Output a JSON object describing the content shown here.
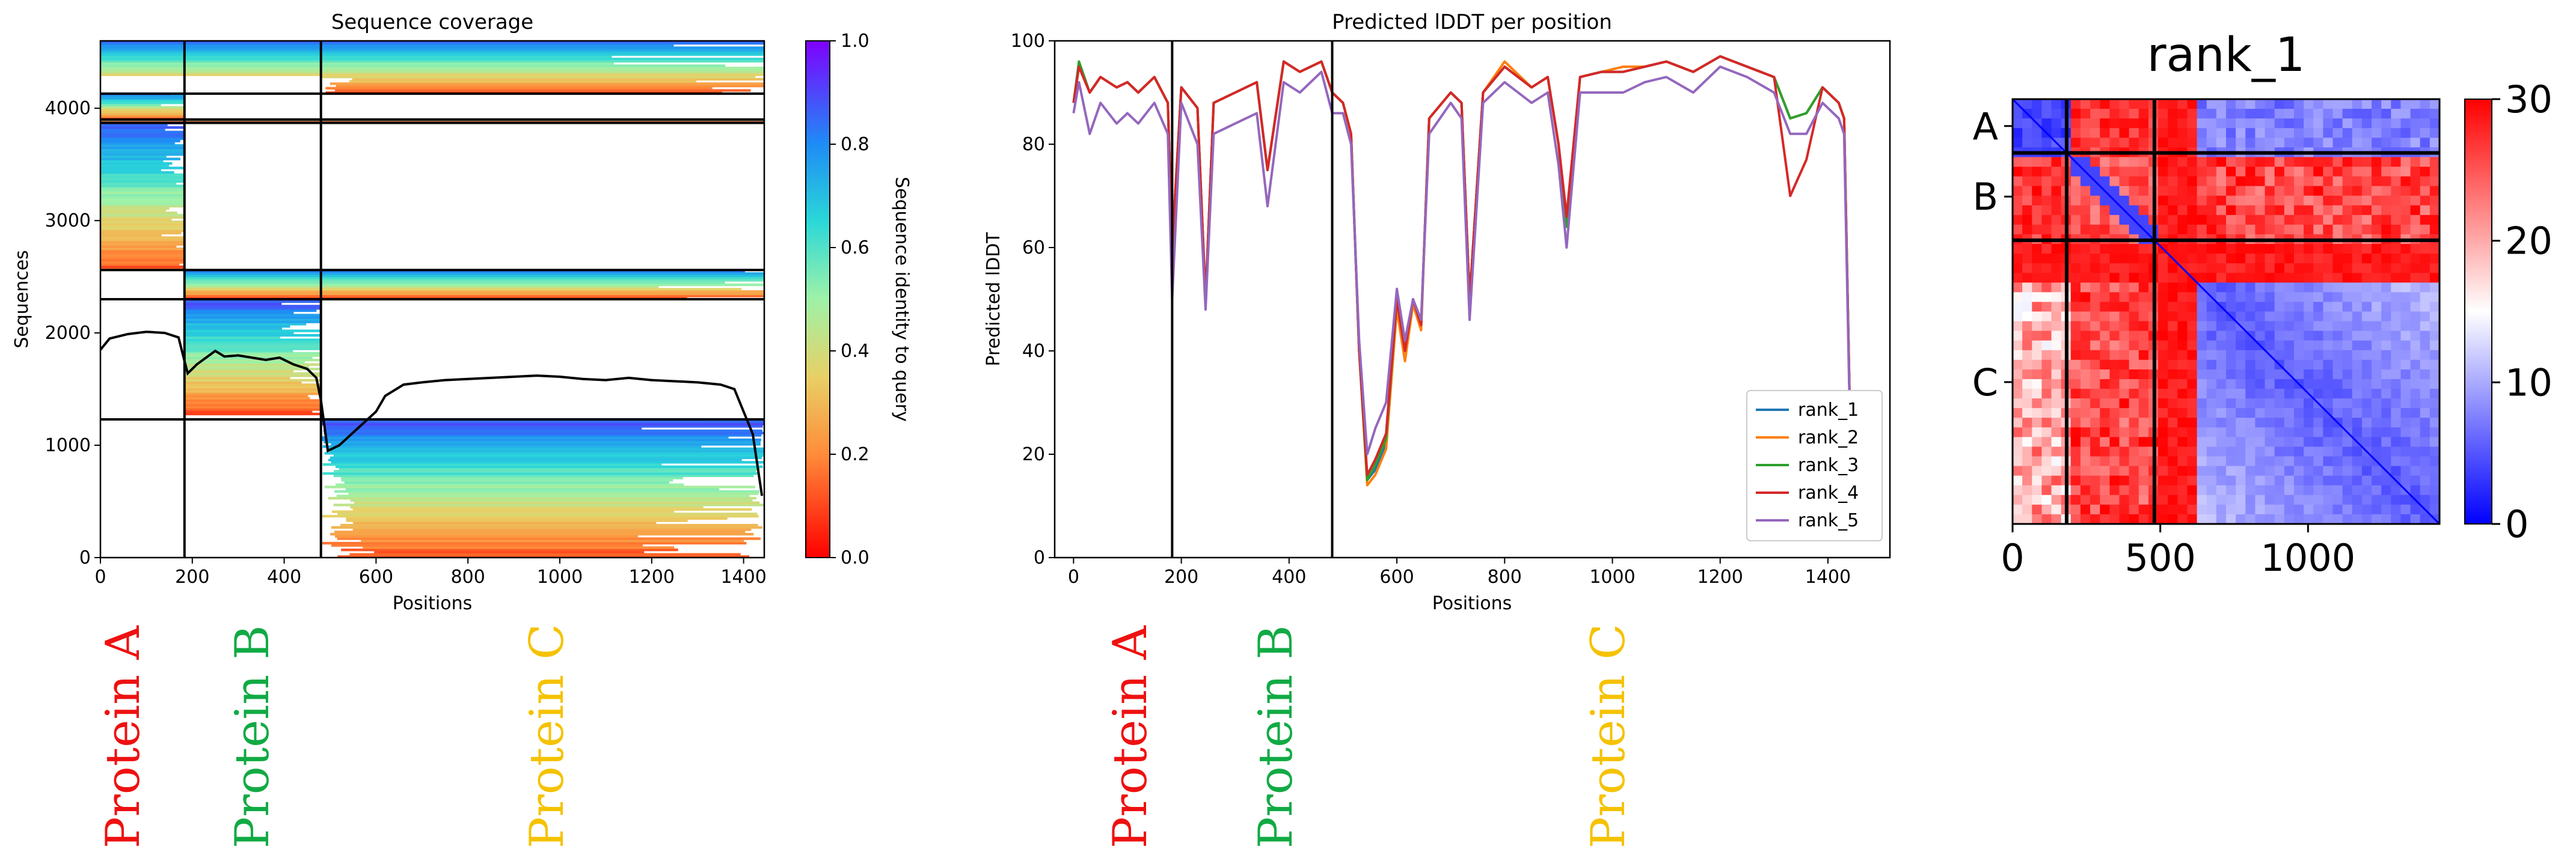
{
  "colors": {
    "protein_a": "#ee1111",
    "protein_b": "#11aa44",
    "protein_c": "#f5c200",
    "rank_1": "#1f77b4",
    "rank_2": "#ff7f0e",
    "rank_3": "#2ca02c",
    "rank_4": "#d62728",
    "rank_5": "#9467bd"
  },
  "protein_labels": [
    "Protein A",
    "Protein B",
    "Protein C"
  ],
  "chart_data": [
    {
      "type": "heatmap",
      "title": "Sequence coverage",
      "xlabel": "Positions",
      "ylabel": "Sequences",
      "xlim": [
        0,
        1445
      ],
      "ylim": [
        0,
        4600
      ],
      "x_ticks": [
        0,
        200,
        400,
        600,
        800,
        1000,
        1200,
        1400
      ],
      "y_ticks": [
        0,
        1000,
        2000,
        3000,
        4000
      ],
      "colorbar": {
        "label": "Sequence identity to query",
        "range": [
          0,
          1
        ],
        "ticks": [
          "0.0",
          "0.2",
          "0.4",
          "0.6",
          "0.8",
          "1.0"
        ],
        "colormap": "rainbow_r"
      },
      "chain_boundaries_x": [
        183,
        480
      ],
      "block_boundaries_y": [
        1230,
        2300,
        2560,
        3870,
        3900,
        4130
      ],
      "coverage_line": {
        "x": [
          0,
          20,
          60,
          100,
          140,
          170,
          183,
          190,
          210,
          230,
          250,
          270,
          300,
          330,
          360,
          390,
          420,
          450,
          470,
          480,
          495,
          520,
          560,
          600,
          620,
          660,
          700,
          750,
          800,
          850,
          900,
          950,
          1000,
          1050,
          1100,
          1150,
          1200,
          1250,
          1300,
          1350,
          1380,
          1400,
          1420,
          1440
        ],
        "y": [
          1850,
          1950,
          1990,
          2010,
          2000,
          1960,
          1750,
          1640,
          1720,
          1780,
          1840,
          1790,
          1800,
          1780,
          1760,
          1780,
          1720,
          1680,
          1600,
          1400,
          950,
          1000,
          1150,
          1300,
          1440,
          1540,
          1560,
          1580,
          1590,
          1600,
          1610,
          1620,
          1610,
          1590,
          1580,
          1600,
          1580,
          1570,
          1560,
          1540,
          1500,
          1300,
          1100,
          550
        ]
      }
    },
    {
      "type": "line",
      "title": "Predicted lDDT per position",
      "xlabel": "Positions",
      "ylabel": "Predicted lDDT",
      "xlim": [
        -35,
        1515
      ],
      "ylim": [
        0,
        100
      ],
      "x_ticks": [
        0,
        200,
        400,
        600,
        800,
        1000,
        1200,
        1400
      ],
      "y_ticks": [
        0,
        20,
        40,
        60,
        80,
        100
      ],
      "chain_boundaries_x": [
        183,
        480
      ],
      "legend_position": "lower-right",
      "x": [
        0,
        10,
        30,
        50,
        80,
        100,
        120,
        150,
        175,
        183,
        200,
        230,
        245,
        260,
        300,
        340,
        360,
        390,
        420,
        460,
        480,
        500,
        515,
        530,
        545,
        560,
        580,
        600,
        615,
        630,
        645,
        660,
        700,
        720,
        735,
        760,
        800,
        850,
        880,
        900,
        915,
        940,
        980,
        1020,
        1060,
        1100,
        1150,
        1200,
        1250,
        1300,
        1330,
        1360,
        1390,
        1420,
        1430,
        1440
      ],
      "series": [
        {
          "name": "rank_1",
          "values": [
            88,
            95,
            90,
            93,
            91,
            92,
            90,
            93,
            88,
            60,
            91,
            87,
            50,
            88,
            90,
            92,
            75,
            96,
            94,
            96,
            90,
            88,
            82,
            40,
            15,
            17,
            22,
            50,
            40,
            50,
            45,
            85,
            90,
            88,
            50,
            90,
            95,
            91,
            93,
            80,
            66,
            93,
            94,
            94,
            95,
            96,
            94,
            97,
            95,
            93,
            85,
            86,
            91,
            88,
            85,
            32
          ]
        },
        {
          "name": "rank_2",
          "values": [
            88,
            95,
            90,
            93,
            91,
            92,
            90,
            93,
            88,
            60,
            91,
            87,
            50,
            88,
            90,
            92,
            75,
            96,
            94,
            96,
            90,
            88,
            82,
            40,
            14,
            16,
            21,
            48,
            38,
            49,
            44,
            85,
            90,
            88,
            50,
            90,
            96,
            91,
            93,
            80,
            66,
            93,
            94,
            95,
            95,
            96,
            94,
            97,
            95,
            93,
            85,
            86,
            91,
            88,
            85,
            32
          ]
        },
        {
          "name": "rank_3",
          "values": [
            88,
            96,
            90,
            93,
            91,
            92,
            90,
            93,
            88,
            60,
            91,
            87,
            50,
            88,
            90,
            92,
            75,
            96,
            94,
            96,
            90,
            88,
            82,
            40,
            15,
            18,
            23,
            50,
            40,
            50,
            45,
            85,
            90,
            88,
            50,
            90,
            95,
            91,
            93,
            80,
            64,
            93,
            94,
            94,
            95,
            96,
            94,
            97,
            95,
            93,
            85,
            86,
            91,
            88,
            85,
            32
          ]
        },
        {
          "name": "rank_4",
          "values": [
            88,
            95,
            90,
            93,
            91,
            92,
            90,
            93,
            88,
            60,
            91,
            87,
            50,
            88,
            90,
            92,
            75,
            96,
            94,
            96,
            90,
            88,
            82,
            40,
            16,
            19,
            24,
            50,
            40,
            50,
            45,
            85,
            90,
            88,
            50,
            90,
            95,
            91,
            93,
            80,
            66,
            93,
            94,
            94,
            95,
            96,
            94,
            97,
            95,
            93,
            70,
            77,
            91,
            88,
            85,
            32
          ]
        },
        {
          "name": "rank_5",
          "values": [
            86,
            92,
            82,
            88,
            84,
            86,
            84,
            88,
            82,
            50,
            88,
            80,
            48,
            82,
            84,
            86,
            68,
            92,
            90,
            94,
            86,
            86,
            80,
            42,
            20,
            25,
            30,
            52,
            42,
            50,
            46,
            82,
            88,
            85,
            46,
            88,
            92,
            88,
            90,
            76,
            60,
            90,
            90,
            90,
            92,
            93,
            90,
            95,
            93,
            90,
            82,
            82,
            88,
            85,
            82,
            30
          ]
        }
      ]
    },
    {
      "type": "heatmap",
      "title": "rank_1",
      "xlim": [
        0,
        1445
      ],
      "x_ticks": [
        0,
        500,
        1000
      ],
      "y_tick_labels": [
        "A",
        "B",
        "C"
      ],
      "chain_boundaries": [
        183,
        480
      ],
      "colorbar": {
        "range": [
          0,
          30
        ],
        "ticks": [
          "0",
          "10",
          "20",
          "30"
        ],
        "colormap": "bwr"
      }
    }
  ]
}
